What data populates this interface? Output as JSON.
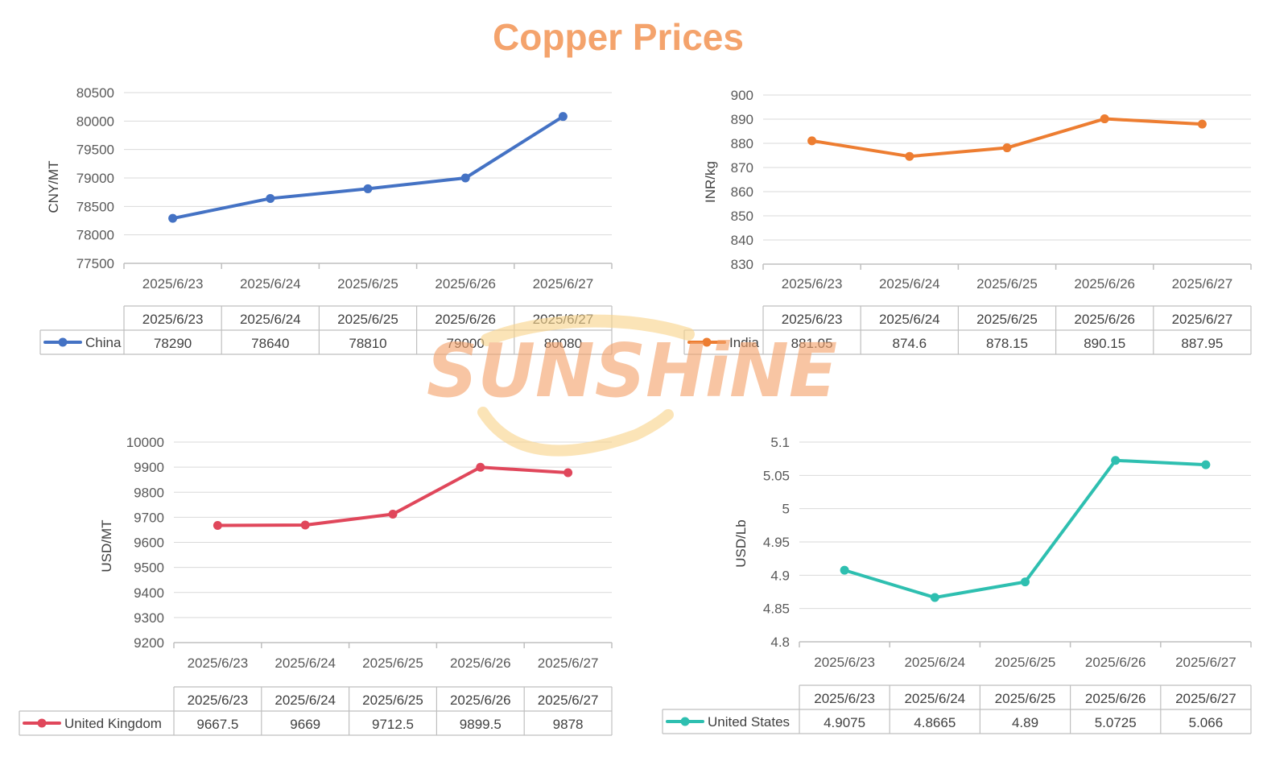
{
  "page": {
    "title": "Copper Prices",
    "title_color": "#F4A36C"
  },
  "watermark": {
    "text": "SUNSHiNE",
    "color": "#F4A36C",
    "arc_color": "#F9D58C"
  },
  "chart_data": [
    {
      "type": "line",
      "categories": [
        "2025/6/23",
        "2025/6/24",
        "2025/6/25",
        "2025/6/26",
        "2025/6/27"
      ],
      "series": [
        {
          "name": "China",
          "values": [
            78290,
            78640,
            78810,
            79000,
            80080
          ],
          "color": "#4472C4"
        }
      ],
      "ylabel": "CNY/MT",
      "ylim": [
        77500,
        80500
      ],
      "yticks": [
        "80500",
        "80000",
        "79500",
        "79000",
        "78500",
        "78000",
        "77500"
      ],
      "table": {
        "header": [
          "2025/6/23",
          "2025/6/24",
          "2025/6/25",
          "2025/6/26",
          "2025/6/27"
        ],
        "row_label": "China",
        "cells": [
          "78290",
          "78640",
          "78810",
          "79000",
          "80080"
        ]
      },
      "grid": true,
      "legend": "data table"
    },
    {
      "type": "line",
      "categories": [
        "2025/6/23",
        "2025/6/24",
        "2025/6/25",
        "2025/6/26",
        "2025/6/27"
      ],
      "series": [
        {
          "name": "India",
          "values": [
            881.05,
            874.6,
            878.15,
            890.15,
            887.95
          ],
          "color": "#ED7D31"
        }
      ],
      "ylabel": "INR/kg",
      "ylim": [
        830,
        900
      ],
      "yticks": [
        "900",
        "890",
        "880",
        "870",
        "860",
        "850",
        "840",
        "830"
      ],
      "table": {
        "header": [
          "2025/6/23",
          "2025/6/24",
          "2025/6/25",
          "2025/6/26",
          "2025/6/27"
        ],
        "row_label": "India",
        "cells": [
          "881.05",
          "874.6",
          "878.15",
          "890.15",
          "887.95"
        ]
      },
      "grid": true,
      "legend": "data table"
    },
    {
      "type": "line",
      "categories": [
        "2025/6/23",
        "2025/6/24",
        "2025/6/25",
        "2025/6/26",
        "2025/6/27"
      ],
      "series": [
        {
          "name": "United Kingdom",
          "values": [
            9667.5,
            9669,
            9712.5,
            9899.5,
            9878
          ],
          "color": "#E0475B"
        }
      ],
      "ylabel": "USD/MT",
      "ylim": [
        9200,
        10000
      ],
      "yticks": [
        "10000",
        "9900",
        "9800",
        "9700",
        "9600",
        "9500",
        "9400",
        "9300",
        "9200"
      ],
      "table": {
        "header": [
          "2025/6/23",
          "2025/6/24",
          "2025/6/25",
          "2025/6/26",
          "2025/6/27"
        ],
        "row_label": "United Kingdom",
        "cells": [
          "9667.5",
          "9669",
          "9712.5",
          "9899.5",
          "9878"
        ]
      },
      "grid": true,
      "legend": "data table"
    },
    {
      "type": "line",
      "categories": [
        "2025/6/23",
        "2025/6/24",
        "2025/6/25",
        "2025/6/26",
        "2025/6/27"
      ],
      "series": [
        {
          "name": "United States",
          "values": [
            4.9075,
            4.8665,
            4.89,
            5.0725,
            5.066
          ],
          "color": "#2EBFB0"
        }
      ],
      "ylabel": "USD/Lb",
      "ylim": [
        4.8,
        5.1
      ],
      "yticks": [
        "5.1",
        "5.05",
        "5",
        "4.95",
        "4.9",
        "4.85",
        "4.8"
      ],
      "table": {
        "header": [
          "2025/6/23",
          "2025/6/24",
          "2025/6/25",
          "2025/6/26",
          "2025/6/27"
        ],
        "row_label": "United States",
        "cells": [
          "4.9075",
          "4.8665",
          "4.89",
          "5.0725",
          "5.066"
        ]
      },
      "grid": true,
      "legend": "data table"
    }
  ]
}
